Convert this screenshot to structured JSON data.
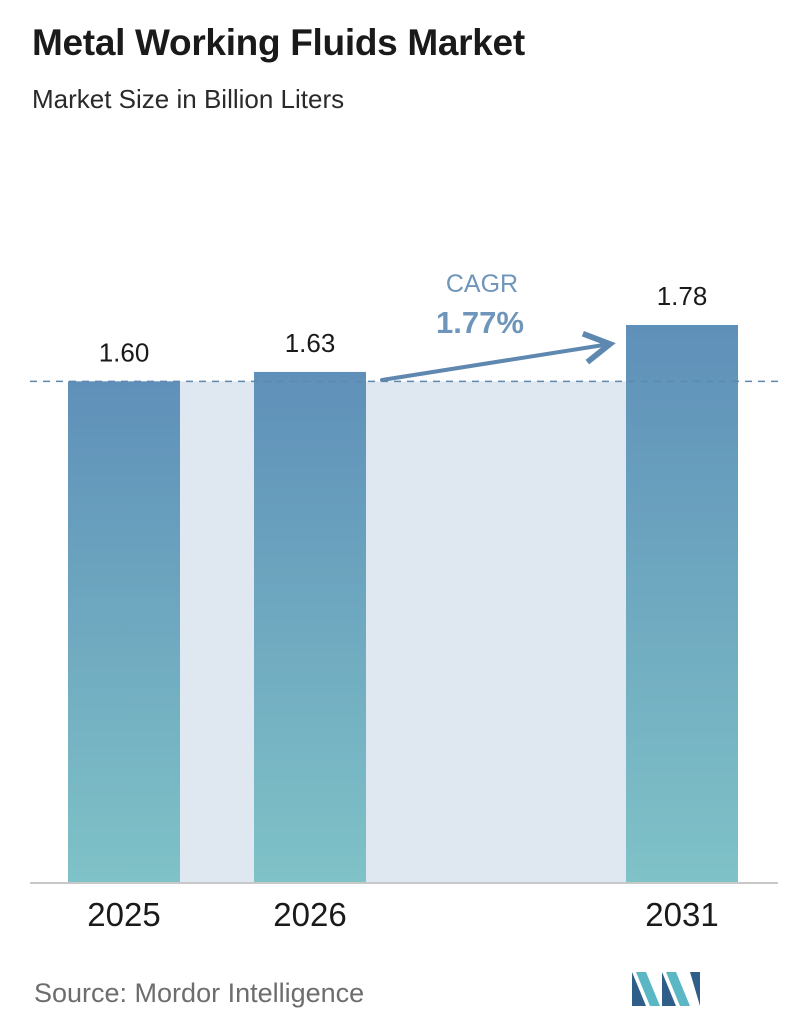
{
  "header": {
    "title": "Metal Working Fluids Market",
    "subtitle": "Market Size in Billion Liters"
  },
  "footer": {
    "source": "Source:  Mordor Intelligence",
    "logo_icon": "mordor-intelligence-logo-icon"
  },
  "colors": {
    "bar_top": "#5f90b9",
    "bar_bottom": "#7fc2c7",
    "band": "#dfe8f1",
    "cagr_text": "#6f95ba",
    "arrow": "#5f88b0",
    "dashed_line": "#5f88b0",
    "axis": "#c8c8c8",
    "logo_dark": "#2f5e8a",
    "logo_light": "#5bb7c4"
  },
  "chart_data": {
    "type": "bar",
    "title": "Metal Working Fluids Market",
    "subtitle": "Market Size in Billion Liters",
    "categories": [
      "2025",
      "2026",
      "2031"
    ],
    "values": [
      1.6,
      1.63,
      1.78
    ],
    "value_labels": [
      "1.60",
      "1.63",
      "1.78"
    ],
    "xlabel": "",
    "ylabel": "",
    "ylim": [
      0,
      1.78
    ],
    "grid": false,
    "legend": "none",
    "annotations": {
      "cagr_label": "CAGR",
      "cagr_value": "1.77%",
      "reference_line_value": 1.6
    }
  }
}
